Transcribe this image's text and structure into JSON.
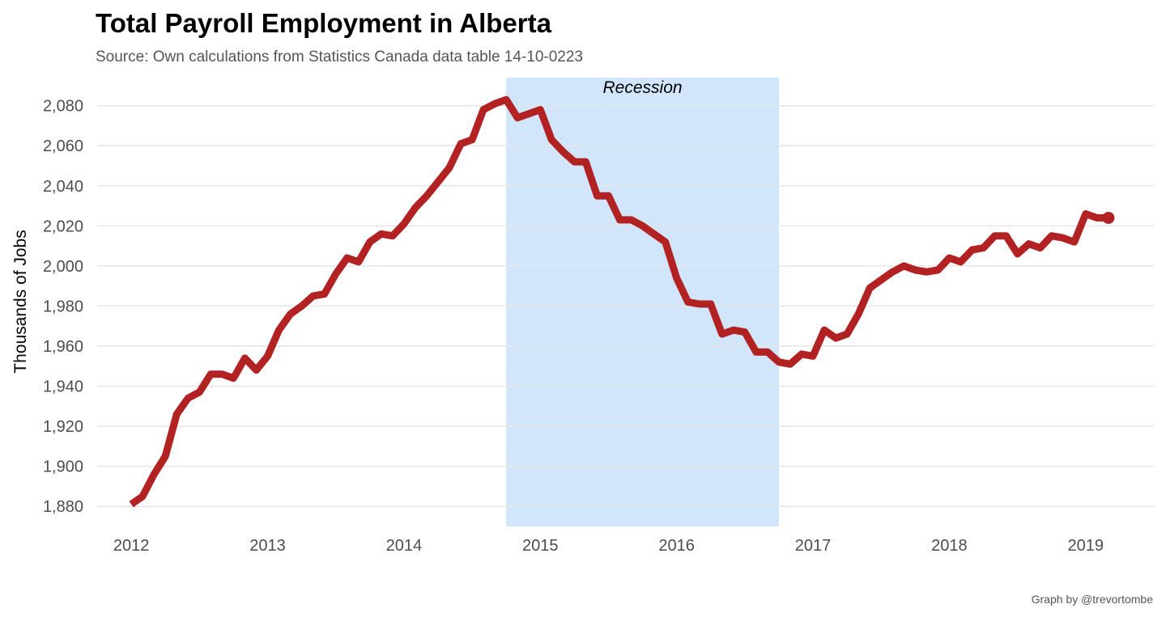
{
  "title": "Total Payroll Employment in Alberta",
  "subtitle": "Source: Own calculations from Statistics Canada data table 14-10-0223",
  "caption": "Graph by @trevortombe",
  "colors": {
    "line": "#b22222",
    "recession": "#d1e5fb",
    "grid": "#e6e6e6",
    "tick_text": "#4d4d4d"
  },
  "chart_data": {
    "type": "line",
    "title": "Total Payroll Employment in Alberta",
    "ylabel": "Thousands of Jobs",
    "xlabel": "",
    "xlim": [
      2011.75,
      2019.5
    ],
    "ylim": [
      1870,
      2094
    ],
    "x_ticks": [
      2012,
      2013,
      2014,
      2015,
      2016,
      2017,
      2018,
      2019
    ],
    "x_tick_labels": [
      "2012",
      "2013",
      "2014",
      "2015",
      "2016",
      "2017",
      "2018",
      "2019"
    ],
    "y_ticks": [
      1880,
      1900,
      1920,
      1940,
      1960,
      1980,
      2000,
      2020,
      2040,
      2060,
      2080
    ],
    "y_tick_labels": [
      "1,880",
      "1,900",
      "1,920",
      "1,940",
      "1,960",
      "1,980",
      "2,000",
      "2,020",
      "2,040",
      "2,060",
      "2,080"
    ],
    "grid": "horizontal",
    "legend": "none",
    "annotations": [
      {
        "type": "shaded_region",
        "label": "Recession",
        "x_start": 2014.75,
        "x_end": 2016.75
      }
    ],
    "series": [
      {
        "values": [
          [
            2012.0,
            1881
          ],
          [
            2012.083,
            1885
          ],
          [
            2012.167,
            1896
          ],
          [
            2012.25,
            1905
          ],
          [
            2012.333,
            1926
          ],
          [
            2012.417,
            1934
          ],
          [
            2012.5,
            1937
          ],
          [
            2012.583,
            1946
          ],
          [
            2012.667,
            1946
          ],
          [
            2012.75,
            1944
          ],
          [
            2012.833,
            1954
          ],
          [
            2012.917,
            1948
          ],
          [
            2013.0,
            1955
          ],
          [
            2013.083,
            1968
          ],
          [
            2013.167,
            1976
          ],
          [
            2013.25,
            1980
          ],
          [
            2013.333,
            1985
          ],
          [
            2013.417,
            1986
          ],
          [
            2013.5,
            1996
          ],
          [
            2013.583,
            2004
          ],
          [
            2013.667,
            2002
          ],
          [
            2013.75,
            2012
          ],
          [
            2013.833,
            2016
          ],
          [
            2013.917,
            2015
          ],
          [
            2014.0,
            2021
          ],
          [
            2014.083,
            2029
          ],
          [
            2014.167,
            2035
          ],
          [
            2014.25,
            2042
          ],
          [
            2014.333,
            2049
          ],
          [
            2014.417,
            2061
          ],
          [
            2014.5,
            2063
          ],
          [
            2014.583,
            2078
          ],
          [
            2014.667,
            2081
          ],
          [
            2014.75,
            2083
          ],
          [
            2014.833,
            2074
          ],
          [
            2014.917,
            2076
          ],
          [
            2015.0,
            2078
          ],
          [
            2015.083,
            2063
          ],
          [
            2015.167,
            2057
          ],
          [
            2015.25,
            2052
          ],
          [
            2015.333,
            2052
          ],
          [
            2015.417,
            2035
          ],
          [
            2015.5,
            2035
          ],
          [
            2015.583,
            2023
          ],
          [
            2015.667,
            2023
          ],
          [
            2015.75,
            2020
          ],
          [
            2015.833,
            2016
          ],
          [
            2015.917,
            2012
          ],
          [
            2016.0,
            1994
          ],
          [
            2016.083,
            1982
          ],
          [
            2016.167,
            1981
          ],
          [
            2016.25,
            1981
          ],
          [
            2016.333,
            1966
          ],
          [
            2016.417,
            1968
          ],
          [
            2016.5,
            1967
          ],
          [
            2016.583,
            1957
          ],
          [
            2016.667,
            1957
          ],
          [
            2016.75,
            1952
          ],
          [
            2016.833,
            1951
          ],
          [
            2016.917,
            1956
          ],
          [
            2017.0,
            1955
          ],
          [
            2017.083,
            1968
          ],
          [
            2017.167,
            1964
          ],
          [
            2017.25,
            1966
          ],
          [
            2017.333,
            1976
          ],
          [
            2017.417,
            1989
          ],
          [
            2017.5,
            1993
          ],
          [
            2017.583,
            1997
          ],
          [
            2017.667,
            2000
          ],
          [
            2017.75,
            1998
          ],
          [
            2017.833,
            1997
          ],
          [
            2017.917,
            1998
          ],
          [
            2018.0,
            2004
          ],
          [
            2018.083,
            2002
          ],
          [
            2018.167,
            2008
          ],
          [
            2018.25,
            2009
          ],
          [
            2018.333,
            2015
          ],
          [
            2018.417,
            2015
          ],
          [
            2018.5,
            2006
          ],
          [
            2018.583,
            2011
          ],
          [
            2018.667,
            2009
          ],
          [
            2018.75,
            2015
          ],
          [
            2018.833,
            2014
          ],
          [
            2018.917,
            2012
          ],
          [
            2019.0,
            2026
          ],
          [
            2019.083,
            2024
          ],
          [
            2019.167,
            2024
          ]
        ]
      }
    ]
  }
}
